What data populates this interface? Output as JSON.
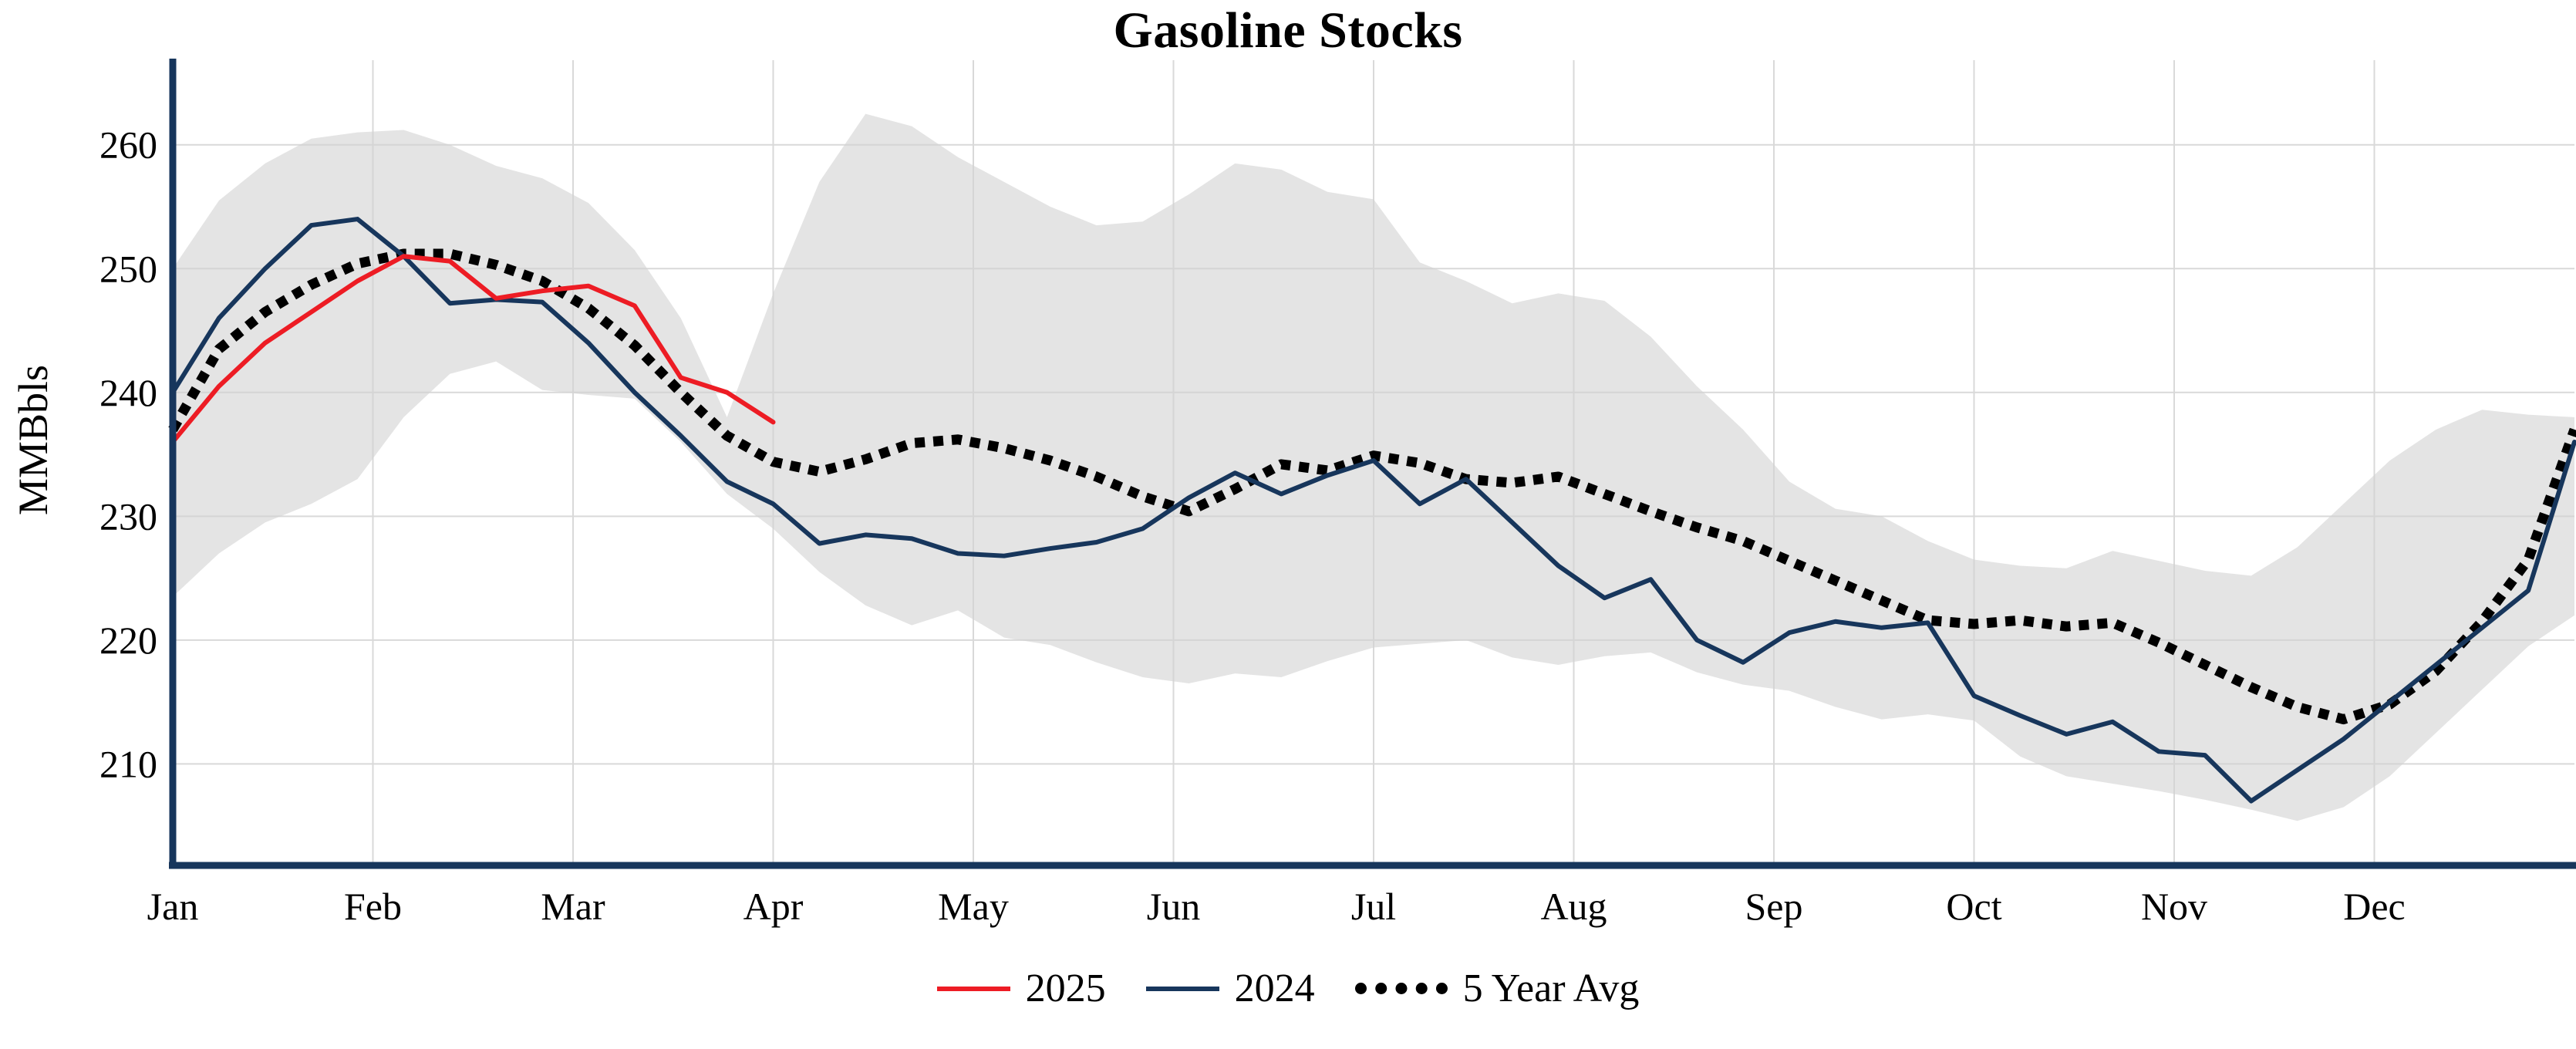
{
  "chart_data": {
    "type": "line",
    "title": "Gasoline Stocks",
    "ylabel": "MMBbls",
    "x_unit": "week of year",
    "x_range": [
      1,
      53
    ],
    "ylim": [
      201.8,
      266.4
    ],
    "y_ticks": [
      210,
      220,
      230,
      240,
      250,
      260
    ],
    "x_axis": {
      "tick_labels": [
        "Jan",
        "Feb",
        "Mar",
        "Apr",
        "May",
        "Jun",
        "Jul",
        "Aug",
        "Sep",
        "Oct",
        "Nov",
        "Dec"
      ]
    },
    "grid": true,
    "legend_position": "bottom",
    "colors": {
      "grid": "#d9d9d9",
      "axis": "#17365c",
      "band_fill": "#d2d2d2",
      "text": "#000000"
    },
    "band": {
      "upper": [
        250,
        255.5,
        258.5,
        260.5,
        261,
        261.2,
        260,
        258.3,
        257.3,
        255.3,
        251.5,
        246,
        238,
        248,
        257,
        262.5,
        261.5,
        259,
        257,
        255,
        253.5,
        253.8,
        256,
        258.5,
        258,
        256.2,
        255.6,
        250.5,
        249,
        247.2,
        248,
        247.4,
        244.5,
        240.5,
        237,
        232.8,
        230.6,
        230,
        228,
        226.5,
        226,
        225.8,
        227.2,
        226.4,
        225.6,
        225.2,
        227.5,
        231,
        234.5,
        237,
        238.6,
        238.2,
        238
      ],
      "lower": [
        223.5,
        227,
        229.5,
        231,
        233,
        238,
        241.5,
        242.5,
        240.2,
        239.8,
        239.5,
        236,
        231.8,
        229,
        225.5,
        222.8,
        221.2,
        222.4,
        220.2,
        219.6,
        218.2,
        217,
        216.5,
        217.3,
        217,
        218.3,
        219.4,
        219.7,
        220,
        218.6,
        218,
        218.7,
        219,
        217.4,
        216.4,
        215.9,
        214.6,
        213.6,
        214,
        213.5,
        210.6,
        209,
        208.4,
        207.8,
        207.1,
        206.3,
        205.4,
        206.5,
        209,
        212.5,
        216,
        219.5,
        222
      ]
    },
    "series": [
      {
        "name": "2025",
        "color": "#ed1c24",
        "style": "solid",
        "start_week": 1,
        "values": [
          236,
          240.5,
          244,
          246.5,
          249,
          251,
          250.6,
          247.6,
          248.2,
          248.6,
          247,
          241.2,
          240,
          237.6
        ]
      },
      {
        "name": "2024",
        "color": "#17365c",
        "style": "solid",
        "start_week": 1,
        "values": [
          240,
          246,
          250,
          253.5,
          254,
          251,
          247.2,
          247.5,
          247.3,
          244,
          240,
          236.5,
          232.8,
          231,
          227.8,
          228.5,
          228.2,
          227,
          226.8,
          227.4,
          227.9,
          229,
          231.5,
          233.5,
          231.8,
          233.3,
          234.5,
          231,
          233,
          229.5,
          226,
          223.4,
          224.9,
          220,
          218.2,
          220.6,
          221.5,
          221,
          221.4,
          215.5,
          213.9,
          212.4,
          213.4,
          211,
          210.7,
          207,
          209.5,
          212,
          215,
          218,
          221,
          224,
          236
        ]
      },
      {
        "name": "5 Year Avg",
        "color": "#000000",
        "style": "dotted",
        "start_week": 1,
        "values": [
          237,
          243.5,
          246.5,
          248.7,
          250.4,
          251.2,
          251.2,
          250.3,
          249,
          246.8,
          243.8,
          240,
          236.5,
          234.4,
          233.6,
          234.6,
          235.9,
          236.2,
          235.5,
          234.5,
          233.2,
          231.6,
          230.4,
          232.2,
          234.2,
          233.7,
          234.9,
          234.3,
          233,
          232.7,
          233.2,
          231.8,
          230.4,
          229.1,
          228,
          226.4,
          224.8,
          223.2,
          221.6,
          221.3,
          221.6,
          221.1,
          221.4,
          219.8,
          218,
          216.2,
          214.6,
          213.6,
          214.8,
          217.5,
          221.5,
          226.5,
          237
        ]
      }
    ]
  }
}
